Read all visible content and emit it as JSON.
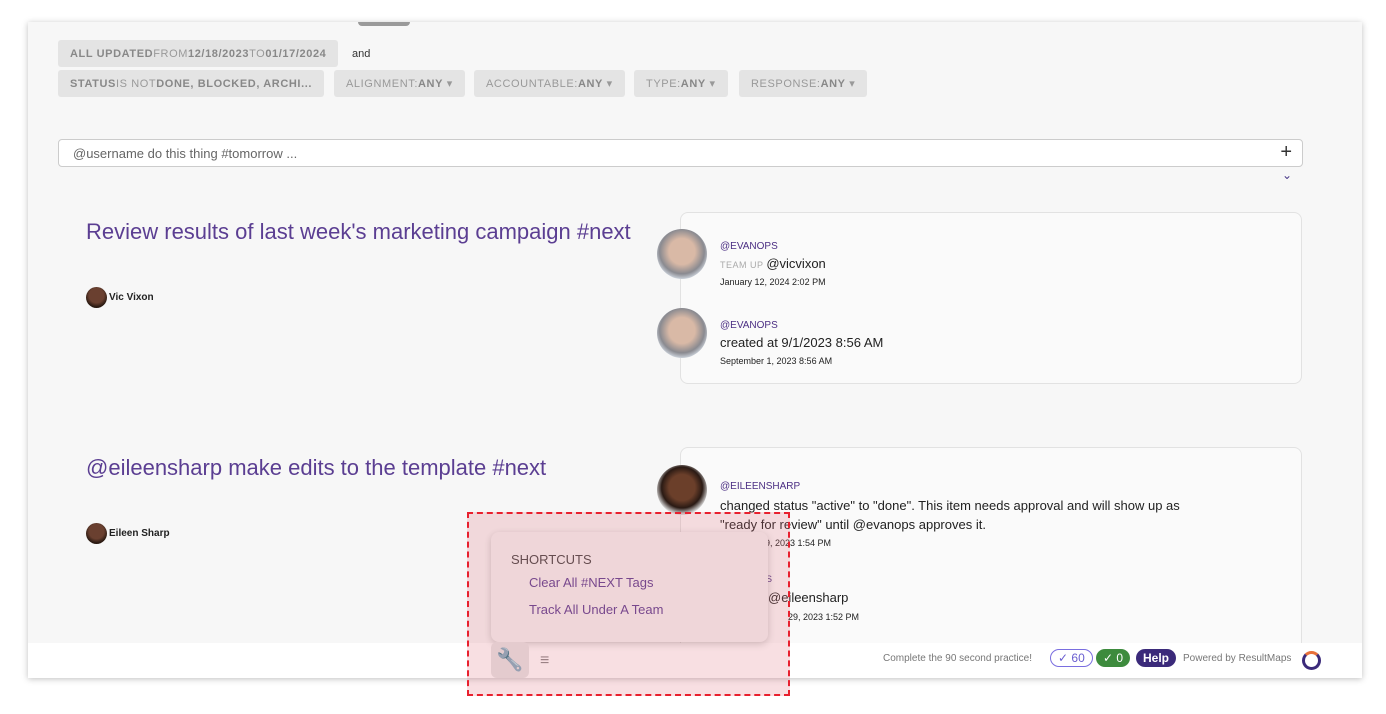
{
  "filters": {
    "updated": {
      "a": "ALL UPDATED",
      "b": " FROM ",
      "c": "12/18/2023",
      "d": " TO ",
      "e": "01/17/2024"
    },
    "and": "and",
    "status": {
      "a": "STATUS",
      "b": " IS NOT ",
      "c": "DONE, BLOCKED, ARCHI..."
    },
    "alignment": {
      "a": "ALIGNMENT: ",
      "b": "ANY"
    },
    "accountable": {
      "a": "ACCOUNTABLE: ",
      "b": "ANY"
    },
    "type": {
      "a": "TYPE: ",
      "b": "ANY"
    },
    "response": {
      "a": "RESPONSE: ",
      "b": "ANY"
    },
    "caret": "▾"
  },
  "new_item": {
    "placeholder": "@username do this thing #tomorrow ...",
    "add_icon": "+",
    "expand_icon": "⌄"
  },
  "items": [
    {
      "title": "Review results of last week's marketing campaign #next",
      "owner": "Vic Vixon",
      "activity": [
        {
          "user": "@EVANOPS",
          "prefix": "TEAM UP ",
          "text": "@vicvixon",
          "date": "January 12, 2024 2:02 PM"
        },
        {
          "user": "@EVANOPS",
          "text": "created at 9/1/2023 8:56 AM",
          "date": "September 1, 2023 8:56 AM"
        }
      ]
    },
    {
      "title": "@eileensharp make edits to the template #next",
      "owner": "Eileen Sharp",
      "activity": [
        {
          "user": "@EILEENSHARP",
          "text": "changed status \"active\" to \"done\". This item needs approval and will show up as",
          "text2": "\"ready for review\" until @evanops approves it.",
          "date": "29, 2023 1:54 PM"
        },
        {
          "user": "S",
          "text": "@eileensharp",
          "date": "29, 2023 1:52 PM"
        }
      ]
    }
  ],
  "shortcuts": {
    "heading": "SHORTCUTS",
    "items": [
      "Clear All #NEXT Tags",
      "Track All Under A Team"
    ]
  },
  "footer": {
    "practice": "Complete the 90 second practice!",
    "count1": "✓ 60",
    "count2": "✓ 0",
    "help": "Help",
    "powered": "Powered by ResultMaps"
  },
  "colors": {
    "accent": "#5b3e92",
    "green": "#3d8b3d",
    "help": "#3b2a7a",
    "highlight": "#e8202e"
  }
}
